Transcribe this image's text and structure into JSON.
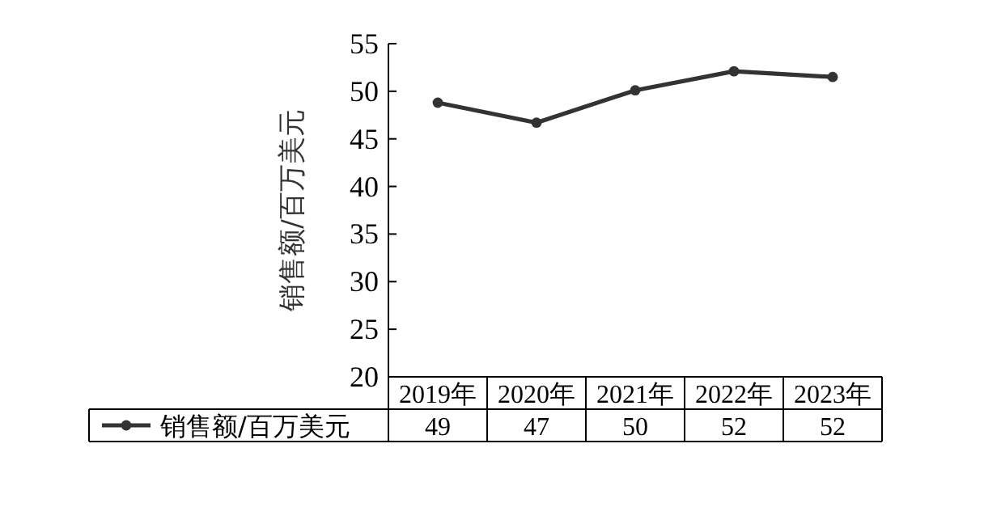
{
  "chart_data": {
    "type": "line",
    "ylabel": "销售额/百万美元",
    "categories": [
      "2019年",
      "2020年",
      "2021年",
      "2022年",
      "2023年"
    ],
    "series": [
      {
        "name": "销售额/百万美元",
        "color": "#333333",
        "values": [
          48.8,
          46.7,
          50.1,
          52.1,
          51.5
        ],
        "value_labels": [
          "49",
          "47",
          "50",
          "52",
          "52"
        ]
      }
    ],
    "ylim": [
      20,
      55
    ],
    "yticks": [
      20,
      25,
      30,
      35,
      40,
      45,
      50,
      55
    ],
    "grid": false,
    "legend": "bottom",
    "marker": "circle",
    "line_style": "solid"
  }
}
